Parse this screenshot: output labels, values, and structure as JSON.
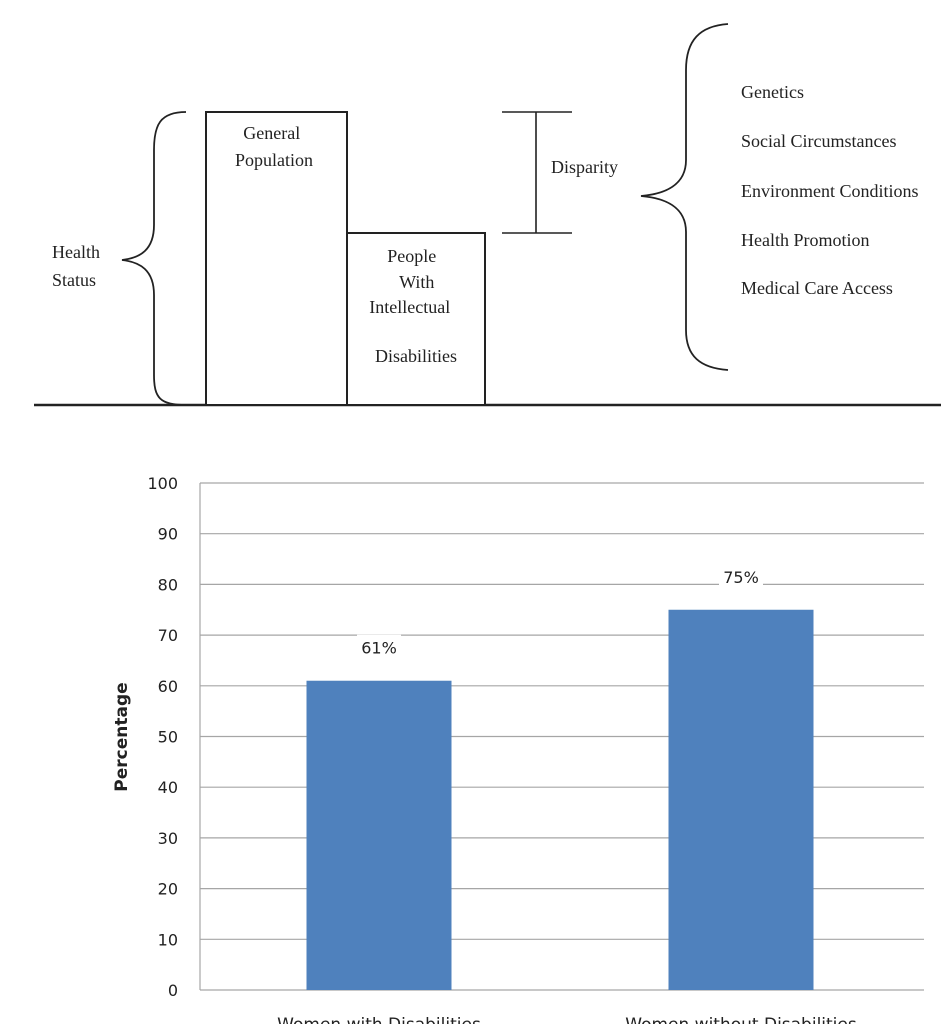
{
  "diagram": {
    "health_status_label": [
      "Health",
      "Status"
    ],
    "general_population_label": [
      "General",
      "Population"
    ],
    "people_id_label": [
      "People",
      "With",
      "Intellectual",
      "Disabilities"
    ],
    "disparity_label": "Disparity",
    "factors": [
      "Genetics",
      "Social Circumstances",
      "Environment Conditions",
      "Health Promotion",
      "Medical Care Access"
    ]
  },
  "chart_data": {
    "type": "bar",
    "categories": [
      "Women with Disabilities",
      "Women without Disabilities"
    ],
    "values": [
      61,
      75
    ],
    "data_labels": [
      "61%",
      "75%"
    ],
    "ylabel": "Percentage",
    "xlabel": "",
    "title": "",
    "ylim": [
      0,
      100
    ],
    "yticks": [
      0,
      10,
      20,
      30,
      40,
      50,
      60,
      70,
      80,
      90,
      100
    ],
    "grid": true,
    "bar_color": "#4f81bd",
    "grid_color": "#a6a6a6"
  }
}
